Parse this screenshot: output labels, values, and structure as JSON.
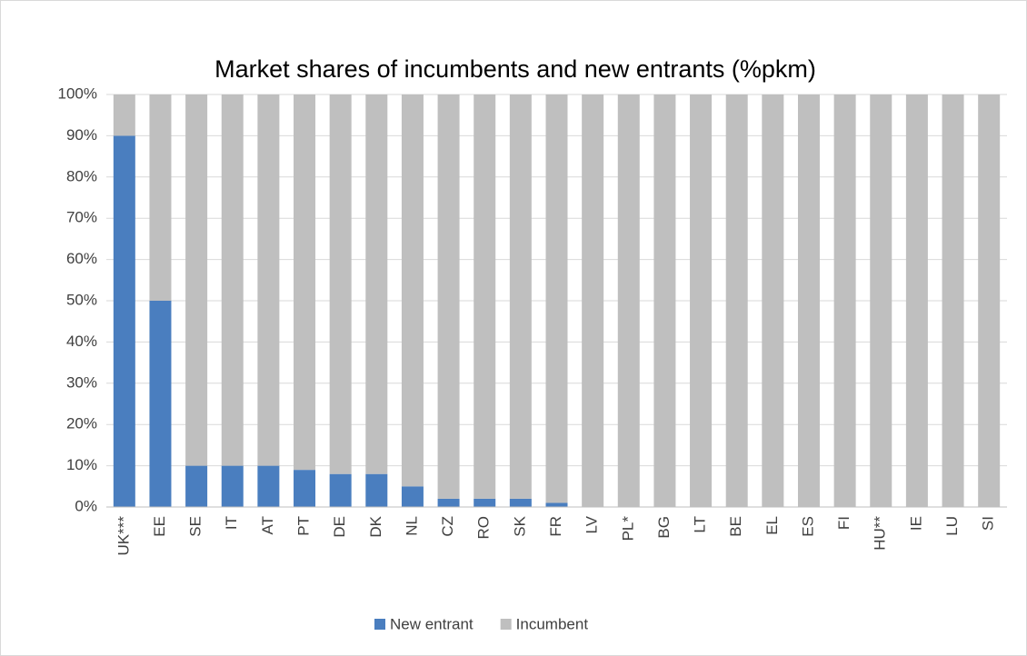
{
  "chart_data": {
    "type": "stacked_bar",
    "title": "Market shares of incumbents and new entrants (%pkm)",
    "categories": [
      "UK***",
      "EE",
      "SE",
      "IT",
      "AT",
      "PT",
      "DE",
      "DK",
      "NL",
      "CZ",
      "RO",
      "SK",
      "FR",
      "LV",
      "PL*",
      "BG",
      "LT",
      "BE",
      "EL",
      "ES",
      "FI",
      "HU**",
      "IE",
      "LU",
      "SI"
    ],
    "series": [
      {
        "name": "New entrant",
        "color": "#4a7ebf",
        "values": [
          90,
          50,
          10,
          10,
          10,
          9,
          8,
          8,
          5,
          2,
          2,
          2,
          1,
          0,
          0,
          0,
          0,
          0,
          0,
          0,
          0,
          0,
          0,
          0,
          0
        ]
      },
      {
        "name": "Incumbent",
        "color": "#bfbfbf",
        "values": [
          10,
          50,
          90,
          90,
          90,
          91,
          92,
          92,
          95,
          98,
          98,
          98,
          99,
          100,
          100,
          100,
          100,
          100,
          100,
          100,
          100,
          100,
          100,
          100,
          100
        ]
      }
    ],
    "ylim": [
      0,
      100
    ],
    "yticks": [
      {
        "value": 0,
        "label": "0%"
      },
      {
        "value": 10,
        "label": "10%"
      },
      {
        "value": 20,
        "label": "20%"
      },
      {
        "value": 30,
        "label": "30%"
      },
      {
        "value": 40,
        "label": "40%"
      },
      {
        "value": 50,
        "label": "50%"
      },
      {
        "value": 60,
        "label": "60%"
      },
      {
        "value": 70,
        "label": "70%"
      },
      {
        "value": 80,
        "label": "80%"
      },
      {
        "value": 90,
        "label": "90%"
      },
      {
        "value": 100,
        "label": "100%"
      }
    ],
    "grid": true,
    "legend": "bottom"
  }
}
